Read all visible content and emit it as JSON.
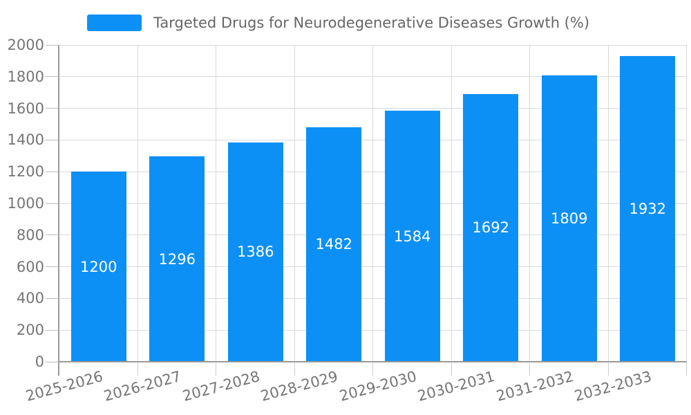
{
  "chart_data": {
    "type": "bar",
    "title": "Targeted Drugs for Neurodegenerative Diseases Growth (%)",
    "categories": [
      "2025-2026",
      "2026-2027",
      "2027-2028",
      "2028-2029",
      "2029-2030",
      "2030-2031",
      "2031-2032",
      "2032-2033"
    ],
    "series": [
      {
        "name": "Targeted Drugs for Neurodegenerative Diseases Growth (%)",
        "values": [
          1200,
          1296,
          1386,
          1482,
          1584,
          1692,
          1809,
          1932
        ]
      }
    ],
    "ylim": [
      0,
      2000
    ],
    "ytick_step": 200,
    "ytick_labels": [
      "0",
      "200",
      "400",
      "600",
      "800",
      "1000",
      "1200",
      "1400",
      "1600",
      "1800",
      "2000"
    ],
    "grid": "horizontal-and-vertical",
    "legend_position": "top-center",
    "bar_label_position": "inside-center",
    "xlabel": "",
    "ylabel": "",
    "colors": {
      "bar": "#0d90f5",
      "bar_label": "#ffffff",
      "axis": "#999999",
      "grid": "#d9d9d9",
      "x_tick": "#cccccc",
      "y_tick": "#bbbbbb",
      "tick_label": "#757575",
      "legend_text": "#666666"
    }
  }
}
